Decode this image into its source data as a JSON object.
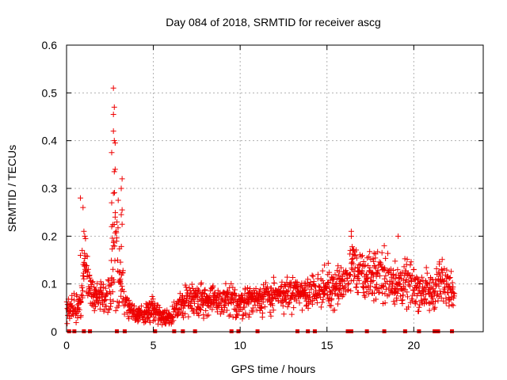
{
  "chart_data": {
    "type": "scatter",
    "title": "Day 084 of 2018, SRMTID for receiver ascg",
    "xlabel": "GPS time / hours",
    "ylabel": "SRMTID / TECUs",
    "xlim": [
      0,
      24
    ],
    "ylim": [
      0,
      0.6
    ],
    "xticks": [
      0,
      5,
      10,
      15,
      20
    ],
    "yticks": [
      0,
      0.1,
      0.2,
      0.3,
      0.4,
      0.5,
      0.6
    ],
    "xtick_labels": [
      "0",
      "5",
      "10",
      "15",
      "20"
    ],
    "ytick_labels": [
      "0",
      "0.1",
      "0.2",
      "0.3",
      "0.4",
      "0.5",
      "0.6"
    ],
    "grid": true,
    "marker": "+",
    "color": "#ee0000",
    "series_name": "SRMTID",
    "envelope": [
      [
        0.0,
        0.045,
        0.02
      ],
      [
        0.5,
        0.05,
        0.02
      ],
      [
        0.9,
        0.07,
        0.03
      ],
      [
        1.0,
        0.16,
        0.05
      ],
      [
        1.5,
        0.07,
        0.03
      ],
      [
        2.0,
        0.065,
        0.03
      ],
      [
        2.5,
        0.07,
        0.03
      ],
      [
        2.8,
        0.2,
        0.1
      ],
      [
        3.2,
        0.1,
        0.05
      ],
      [
        3.5,
        0.05,
        0.02
      ],
      [
        4.0,
        0.035,
        0.012
      ],
      [
        4.5,
        0.038,
        0.012
      ],
      [
        5.0,
        0.05,
        0.02
      ],
      [
        5.5,
        0.03,
        0.01
      ],
      [
        6.0,
        0.03,
        0.012
      ],
      [
        6.5,
        0.05,
        0.02
      ],
      [
        7.0,
        0.075,
        0.025
      ],
      [
        8.0,
        0.065,
        0.025
      ],
      [
        9.0,
        0.065,
        0.025
      ],
      [
        10.0,
        0.06,
        0.025
      ],
      [
        11.0,
        0.07,
        0.025
      ],
      [
        12.0,
        0.075,
        0.025
      ],
      [
        13.0,
        0.08,
        0.025
      ],
      [
        14.0,
        0.085,
        0.025
      ],
      [
        15.0,
        0.09,
        0.03
      ],
      [
        16.0,
        0.1,
        0.03
      ],
      [
        16.5,
        0.14,
        0.04
      ],
      [
        17.0,
        0.11,
        0.035
      ],
      [
        18.0,
        0.12,
        0.04
      ],
      [
        19.0,
        0.1,
        0.035
      ],
      [
        20.0,
        0.095,
        0.035
      ],
      [
        21.0,
        0.08,
        0.03
      ],
      [
        21.5,
        0.1,
        0.035
      ],
      [
        22.0,
        0.11,
        0.035
      ],
      [
        22.3,
        0.075,
        0.02
      ]
    ],
    "highlight_points": [
      [
        0.8,
        0.28
      ],
      [
        0.95,
        0.26
      ],
      [
        1.0,
        0.21
      ],
      [
        1.05,
        0.2
      ],
      [
        0.9,
        0.17
      ],
      [
        0.8,
        0.16
      ],
      [
        2.7,
        0.51
      ],
      [
        2.75,
        0.47
      ],
      [
        2.7,
        0.455
      ],
      [
        2.7,
        0.42
      ],
      [
        2.75,
        0.4
      ],
      [
        2.8,
        0.395
      ],
      [
        2.6,
        0.375
      ],
      [
        2.8,
        0.34
      ],
      [
        2.75,
        0.335
      ],
      [
        2.7,
        0.29
      ],
      [
        2.6,
        0.27
      ],
      [
        2.8,
        0.24
      ],
      [
        2.6,
        0.22
      ],
      [
        2.7,
        0.18
      ],
      [
        3.2,
        0.32
      ],
      [
        3.15,
        0.3
      ],
      [
        3.2,
        0.255
      ],
      [
        3.15,
        0.245
      ],
      [
        3.2,
        0.225
      ],
      [
        3.1,
        0.11
      ],
      [
        16.4,
        0.21
      ],
      [
        16.4,
        0.2
      ],
      [
        18.3,
        0.18
      ],
      [
        19.1,
        0.2
      ]
    ],
    "gap_markers_x": [
      0.15,
      0.45,
      1.0,
      1.35,
      2.9,
      3.35,
      5.1,
      6.2,
      6.7,
      7.4,
      9.5,
      9.9,
      11.0,
      13.3,
      13.9,
      14.3,
      16.2,
      16.4,
      17.3,
      18.3,
      19.5,
      20.3,
      21.2,
      21.4,
      22.2
    ]
  }
}
